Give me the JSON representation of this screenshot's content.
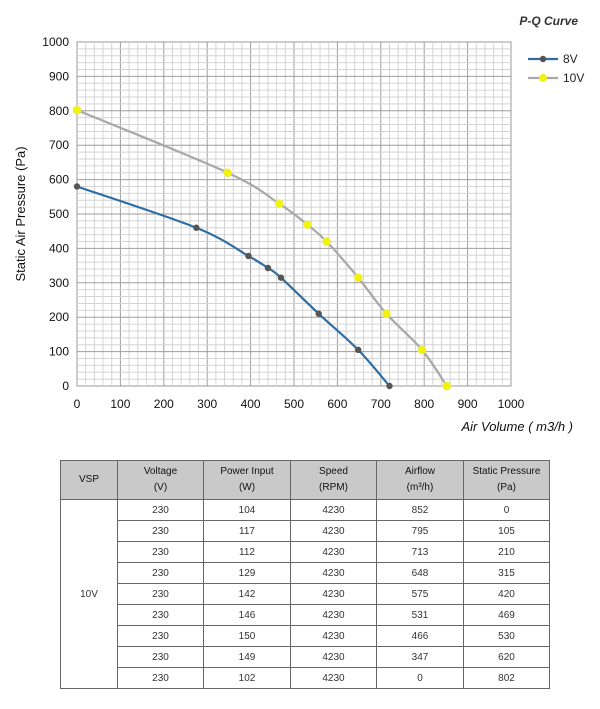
{
  "chart_data": {
    "type": "line",
    "title": "P-Q Curve",
    "xlabel": "Air Volume ( m3/h )",
    "ylabel": "Static Air Pressure  (Pa)",
    "xlim": [
      0,
      1000
    ],
    "ylim": [
      0,
      1000
    ],
    "x_ticks": [
      "0",
      "100",
      "200",
      "300",
      "400",
      "500",
      "600",
      "700",
      "800",
      "900",
      "1000"
    ],
    "y_ticks": [
      "0",
      "100",
      "200",
      "300",
      "400",
      "500",
      "600",
      "700",
      "800",
      "900",
      "1000"
    ],
    "grid": true,
    "legend_position": "top-right",
    "series": [
      {
        "name": "8V",
        "color": "#2e6da4",
        "marker_color": "#555555",
        "points": [
          [
            0,
            580
          ],
          [
            275,
            460
          ],
          [
            395,
            378
          ],
          [
            440,
            343
          ],
          [
            470,
            315
          ],
          [
            557,
            210
          ],
          [
            648,
            105
          ],
          [
            720,
            0
          ]
        ]
      },
      {
        "name": "10V",
        "color": "#a8a8a8",
        "marker_color": "#f2f20a",
        "points": [
          [
            0,
            802
          ],
          [
            347,
            620
          ],
          [
            466,
            530
          ],
          [
            531,
            469
          ],
          [
            575,
            420
          ],
          [
            648,
            315
          ],
          [
            713,
            210
          ],
          [
            795,
            105
          ],
          [
            852,
            0
          ]
        ]
      }
    ]
  },
  "table": {
    "headers": [
      {
        "label": "VSP",
        "unit": ""
      },
      {
        "label": "Voltage",
        "unit": "(V)"
      },
      {
        "label": "Power Input",
        "unit": "(W)"
      },
      {
        "label": "Speed",
        "unit": "(RPM)"
      },
      {
        "label": "Airflow",
        "unit": "(m³/h)"
      },
      {
        "label": "Static Pressure",
        "unit": "(Pa)"
      }
    ],
    "vsp": "10V",
    "rows": [
      [
        "230",
        "104",
        "4230",
        "852",
        "0"
      ],
      [
        "230",
        "117",
        "4230",
        "795",
        "105"
      ],
      [
        "230",
        "112",
        "4230",
        "713",
        "210"
      ],
      [
        "230",
        "129",
        "4230",
        "648",
        "315"
      ],
      [
        "230",
        "142",
        "4230",
        "575",
        "420"
      ],
      [
        "230",
        "146",
        "4230",
        "531",
        "469"
      ],
      [
        "230",
        "150",
        "4230",
        "466",
        "530"
      ],
      [
        "230",
        "149",
        "4230",
        "347",
        "620"
      ],
      [
        "230",
        "102",
        "4230",
        "0",
        "802"
      ]
    ]
  }
}
